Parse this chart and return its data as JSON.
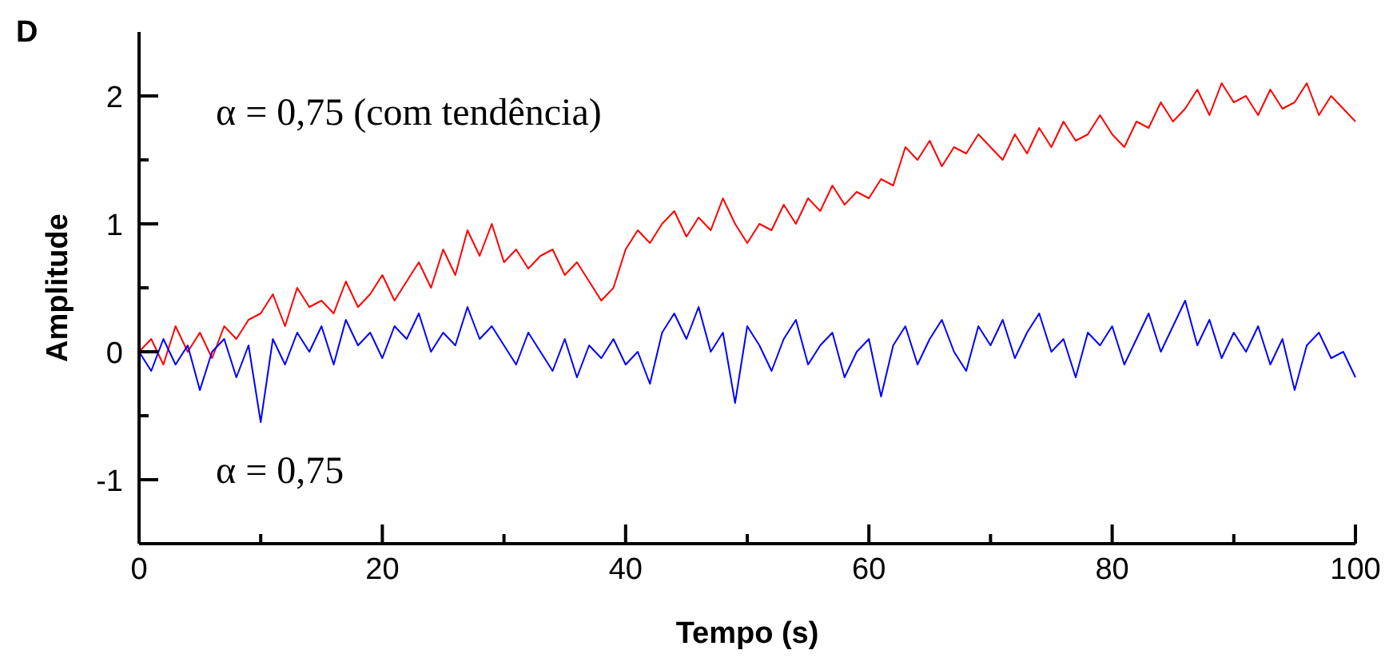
{
  "chart_data": {
    "type": "line",
    "xlabel": "Tempo (s)",
    "ylabel": "Amplitude",
    "annotations": [
      "D"
    ],
    "x": [
      0,
      1,
      2,
      3,
      4,
      5,
      6,
      7,
      8,
      9,
      10,
      11,
      12,
      13,
      14,
      15,
      16,
      17,
      18,
      19,
      20,
      21,
      22,
      23,
      24,
      25,
      26,
      27,
      28,
      29,
      30,
      31,
      32,
      33,
      34,
      35,
      36,
      37,
      38,
      39,
      40,
      41,
      42,
      43,
      44,
      45,
      46,
      47,
      48,
      49,
      50,
      51,
      52,
      53,
      54,
      55,
      56,
      57,
      58,
      59,
      60,
      61,
      62,
      63,
      64,
      65,
      66,
      67,
      68,
      69,
      70,
      71,
      72,
      73,
      74,
      75,
      76,
      77,
      78,
      79,
      80,
      81,
      82,
      83,
      84,
      85,
      86,
      87,
      88,
      89,
      90,
      91,
      92,
      93,
      94,
      95,
      96,
      97,
      98,
      99,
      100
    ],
    "series": [
      {
        "name": "α = 0,75 (com tendência)",
        "color": "#ff0000",
        "values": [
          0.0,
          0.1,
          -0.1,
          0.2,
          0.0,
          0.15,
          -0.05,
          0.2,
          0.1,
          0.25,
          0.3,
          0.45,
          0.2,
          0.5,
          0.35,
          0.4,
          0.3,
          0.55,
          0.35,
          0.45,
          0.6,
          0.4,
          0.55,
          0.7,
          0.5,
          0.8,
          0.6,
          0.95,
          0.75,
          1.0,
          0.7,
          0.8,
          0.65,
          0.75,
          0.8,
          0.6,
          0.7,
          0.55,
          0.4,
          0.5,
          0.8,
          0.95,
          0.85,
          1.0,
          1.1,
          0.9,
          1.05,
          0.95,
          1.2,
          1.0,
          0.85,
          1.0,
          0.95,
          1.15,
          1.0,
          1.2,
          1.1,
          1.3,
          1.15,
          1.25,
          1.2,
          1.35,
          1.3,
          1.6,
          1.5,
          1.65,
          1.45,
          1.6,
          1.55,
          1.7,
          1.6,
          1.5,
          1.7,
          1.55,
          1.75,
          1.6,
          1.8,
          1.65,
          1.7,
          1.85,
          1.7,
          1.6,
          1.8,
          1.75,
          1.95,
          1.8,
          1.9,
          2.05,
          1.85,
          2.1,
          1.95,
          2.0,
          1.85,
          2.05,
          1.9,
          1.95,
          2.1,
          1.85,
          2.0,
          1.9,
          1.8
        ]
      },
      {
        "name": "α = 0,75",
        "color": "#0000ff",
        "values": [
          0.0,
          -0.15,
          0.1,
          -0.1,
          0.05,
          -0.3,
          0.0,
          0.1,
          -0.2,
          0.05,
          -0.55,
          0.1,
          -0.1,
          0.15,
          0.0,
          0.2,
          -0.1,
          0.25,
          0.05,
          0.15,
          -0.05,
          0.2,
          0.1,
          0.3,
          0.0,
          0.15,
          0.05,
          0.35,
          0.1,
          0.2,
          0.05,
          -0.1,
          0.15,
          0.0,
          -0.15,
          0.1,
          -0.2,
          0.05,
          -0.05,
          0.1,
          -0.1,
          0.0,
          -0.25,
          0.15,
          0.3,
          0.1,
          0.35,
          0.0,
          0.15,
          -0.4,
          0.2,
          0.05,
          -0.15,
          0.1,
          0.25,
          -0.1,
          0.05,
          0.15,
          -0.2,
          0.0,
          0.1,
          -0.35,
          0.05,
          0.2,
          -0.1,
          0.1,
          0.25,
          0.0,
          -0.15,
          0.2,
          0.05,
          0.25,
          -0.05,
          0.15,
          0.3,
          0.0,
          0.1,
          -0.2,
          0.15,
          0.05,
          0.2,
          -0.1,
          0.1,
          0.3,
          0.0,
          0.2,
          0.4,
          0.05,
          0.25,
          -0.05,
          0.15,
          0.0,
          0.2,
          -0.1,
          0.1,
          -0.3,
          0.05,
          0.15,
          -0.05,
          0.0,
          -0.2
        ]
      }
    ],
    "xlim": [
      0,
      100
    ],
    "xticks": [
      0,
      {
        "value": 10,
        "label": null
      },
      20,
      {
        "value": 30,
        "label": null
      },
      40,
      {
        "value": 50,
        "label": null
      },
      60,
      {
        "value": 70,
        "label": null
      },
      80,
      {
        "value": 90,
        "label": null
      },
      100
    ],
    "ylim": [
      -1.5,
      2.5
    ],
    "yticks": [
      {
        "value": -1.5,
        "label": null
      },
      -1,
      {
        "value": -0.5,
        "label": null
      },
      0,
      {
        "value": 0.5,
        "label": null
      },
      1,
      {
        "value": 1.5,
        "label": null
      },
      2
    ],
    "marker": "none",
    "line_style": "solid"
  }
}
